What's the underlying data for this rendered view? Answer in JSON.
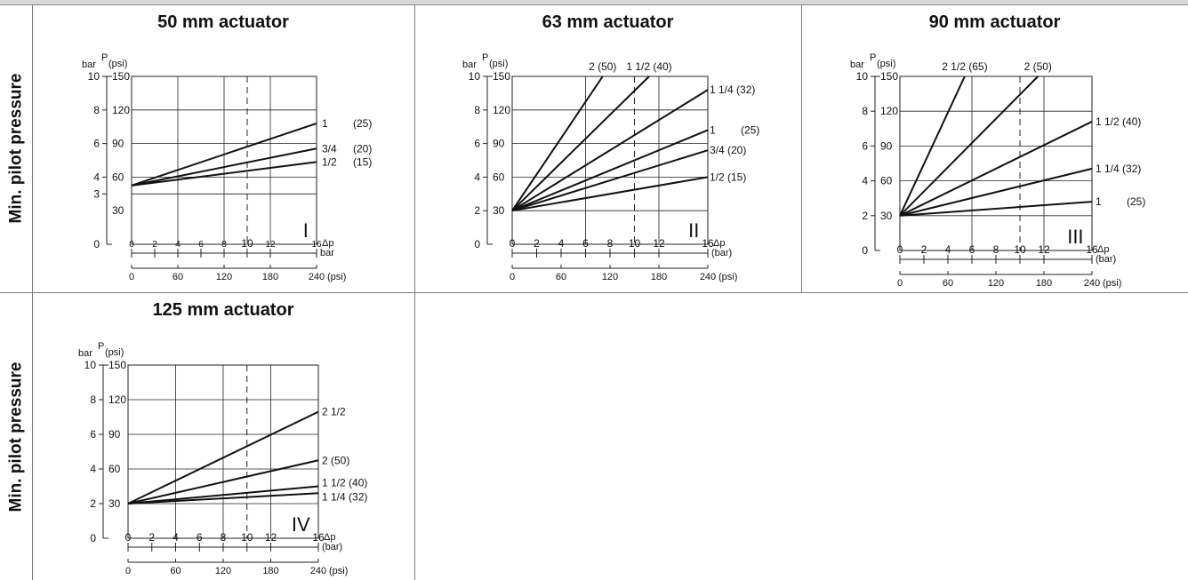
{
  "row_labels": [
    "Min. pilot pressure",
    "Min. pilot pressure"
  ],
  "colors": {
    "line": "#111111",
    "grid": "#222222",
    "frame": "#7a7a7a",
    "header": "#d9d9d9"
  },
  "chart_data": [
    {
      "type": "line",
      "title": "50 mm actuator",
      "y_unit_top": "bar",
      "y_symbol": "P",
      "y_unit_alt": "(psi)",
      "x_symbol": "Δp",
      "x_unit_bar": "bar",
      "x_unit_psi": "(psi)",
      "roman": "I",
      "xlim": [
        0,
        16
      ],
      "ylim": [
        0,
        10
      ],
      "x_ticks_bar": [
        0,
        2,
        4,
        6,
        8,
        10,
        12,
        16
      ],
      "x_ticks_psi": [
        0,
        60,
        120,
        180,
        240
      ],
      "y_ticks_bar": [
        0,
        3,
        4,
        6,
        8,
        10
      ],
      "y_ticks_psi": [
        30,
        60,
        90,
        120,
        150
      ],
      "series": [
        {
          "name": "1",
          "name2": "(25)",
          "x": [
            0,
            16
          ],
          "y": [
            3.5,
            7.2
          ]
        },
        {
          "name": "3/4",
          "name2": "(20)",
          "x": [
            0,
            16
          ],
          "y": [
            3.5,
            5.7
          ]
        },
        {
          "name": "1/2",
          "name2": "(15)",
          "x": [
            0,
            16
          ],
          "y": [
            3.5,
            4.9
          ]
        }
      ]
    },
    {
      "type": "line",
      "title": "63 mm actuator",
      "y_unit_top": "bar",
      "y_symbol": "P",
      "y_unit_alt": "(psi)",
      "x_symbol": "Δp",
      "x_unit_bar": "(bar)",
      "x_unit_psi": "(psi)",
      "roman": "II",
      "xlim": [
        0,
        16
      ],
      "ylim": [
        0,
        10
      ],
      "x_ticks_bar": [
        0,
        2,
        4,
        6,
        8,
        10,
        12,
        16
      ],
      "x_ticks_psi": [
        0,
        60,
        120,
        180,
        240
      ],
      "y_ticks_bar": [
        0,
        2,
        4,
        6,
        8,
        10
      ],
      "y_ticks_psi": [
        30,
        60,
        90,
        120,
        150
      ],
      "series": [
        {
          "name": "2 (50)",
          "x": [
            0,
            7.4
          ],
          "y": [
            2,
            10
          ]
        },
        {
          "name": "1 1/2 (40)",
          "x": [
            0,
            11.2
          ],
          "y": [
            2,
            10
          ]
        },
        {
          "name": "1 1/4 (32)",
          "x": [
            0,
            16
          ],
          "y": [
            2,
            9.2
          ]
        },
        {
          "name": "1",
          "name2": "(25)",
          "x": [
            0,
            16
          ],
          "y": [
            2,
            6.8
          ]
        },
        {
          "name": "3/4 (20)",
          "x": [
            0,
            16
          ],
          "y": [
            2,
            5.6
          ]
        },
        {
          "name": "1/2 (15)",
          "x": [
            0,
            16
          ],
          "y": [
            2,
            4
          ]
        }
      ]
    },
    {
      "type": "line",
      "title": "90 mm actuator",
      "y_unit_top": "bar",
      "y_symbol": "P",
      "y_unit_alt": "(psi)",
      "x_symbol": "Δp",
      "x_unit_bar": "(bar)",
      "x_unit_psi": "(psi)",
      "roman": "III",
      "xlim": [
        0,
        16
      ],
      "ylim": [
        0,
        10
      ],
      "x_ticks_bar": [
        0,
        2,
        4,
        6,
        8,
        10,
        12,
        16
      ],
      "x_ticks_psi": [
        0,
        60,
        120,
        180,
        240
      ],
      "y_ticks_bar": [
        0,
        2,
        4,
        6,
        8,
        10
      ],
      "y_ticks_psi": [
        30,
        60,
        90,
        120,
        150
      ],
      "series": [
        {
          "name": "2 1/2 (65)",
          "x": [
            0,
            5.4
          ],
          "y": [
            2,
            10
          ]
        },
        {
          "name": "2",
          "name2": "(50)",
          "x": [
            0,
            11.5
          ],
          "y": [
            2,
            10
          ]
        },
        {
          "name": "1 1/2 (40)",
          "x": [
            0,
            16
          ],
          "y": [
            2,
            7.4
          ]
        },
        {
          "name": "1 1/4 (32)",
          "x": [
            0,
            16
          ],
          "y": [
            2,
            4.7
          ]
        },
        {
          "name": "1",
          "name2": "(25)",
          "x": [
            0,
            16
          ],
          "y": [
            2,
            2.8
          ]
        }
      ]
    },
    {
      "type": "line",
      "title": "125 mm actuator",
      "y_unit_top": "bar",
      "y_symbol": "P",
      "y_unit_alt": "(psi)",
      "x_symbol": "Δp",
      "x_unit_bar": "(bar)",
      "x_unit_psi": "(psi)",
      "roman": "IV",
      "xlim": [
        0,
        16
      ],
      "ylim": [
        0,
        10
      ],
      "x_ticks_bar": [
        0,
        2,
        4,
        6,
        8,
        10,
        12,
        16
      ],
      "x_ticks_psi": [
        0,
        60,
        120,
        180,
        240
      ],
      "y_ticks_bar": [
        0,
        2,
        4,
        6,
        8,
        10
      ],
      "y_ticks_psi": [
        30,
        60,
        90,
        120,
        150
      ],
      "series": [
        {
          "name": "2 1/2",
          "x": [
            0,
            16
          ],
          "y": [
            2,
            7.3
          ]
        },
        {
          "name": "2 (50)",
          "x": [
            0,
            16
          ],
          "y": [
            2,
            4.5
          ]
        },
        {
          "name": "1 1/2 (40)",
          "x": [
            0,
            16
          ],
          "y": [
            2,
            3
          ]
        },
        {
          "name": "1 1/4 (32)",
          "x": [
            0,
            16
          ],
          "y": [
            2,
            2.6
          ]
        }
      ]
    }
  ]
}
